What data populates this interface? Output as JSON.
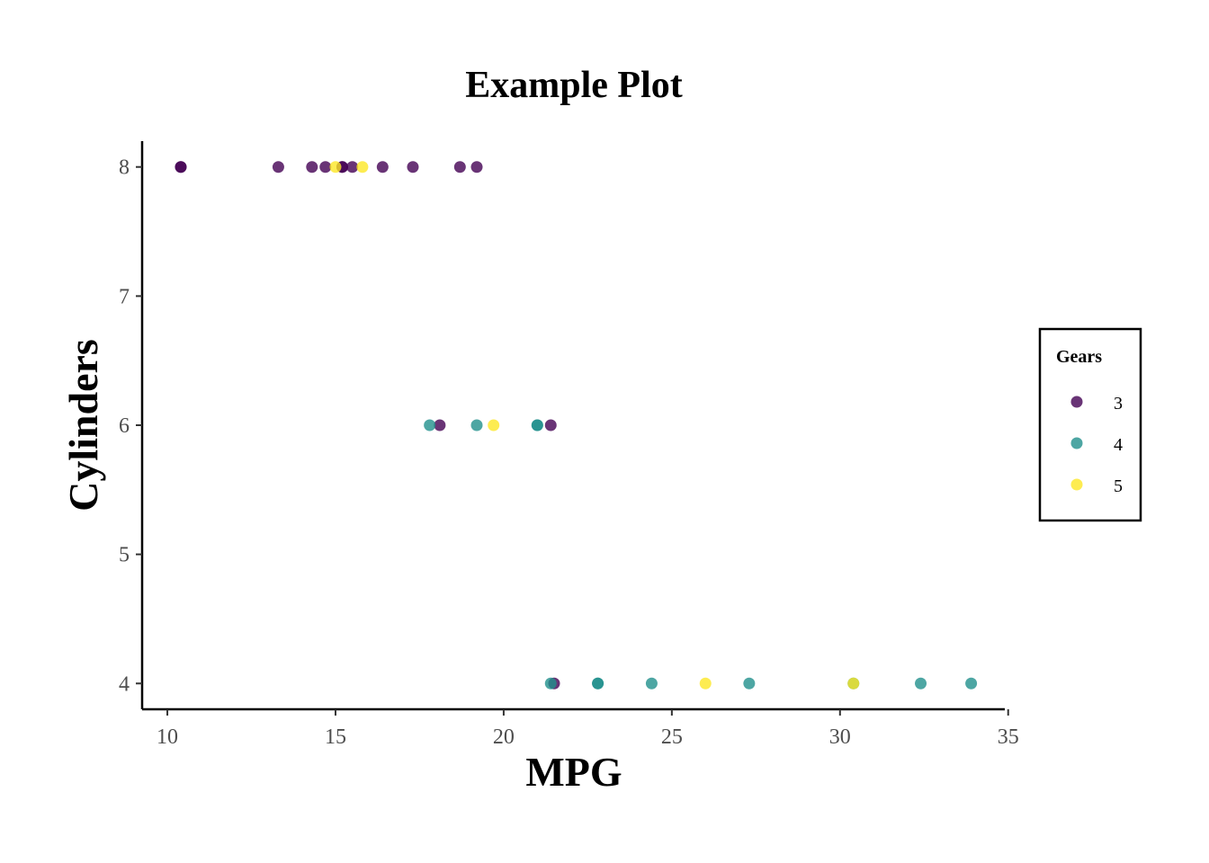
{
  "chart_data": {
    "type": "scatter",
    "title": "Example Plot",
    "xlabel": "MPG",
    "ylabel": "Cylinders",
    "xlim": [
      9.25,
      34.9
    ],
    "ylim": [
      3.8,
      8.2
    ],
    "x_ticks": [
      10,
      15,
      20,
      25,
      30,
      35
    ],
    "y_ticks": [
      4,
      5,
      6,
      7,
      8
    ],
    "grid": false,
    "legend": {
      "title": "Gears",
      "placement": "right"
    },
    "series": [
      {
        "name": "3",
        "color": "#440154",
        "points": [
          {
            "x": 10.4,
            "y": 8
          },
          {
            "x": 10.4,
            "y": 8
          },
          {
            "x": 13.3,
            "y": 8
          },
          {
            "x": 14.3,
            "y": 8
          },
          {
            "x": 14.7,
            "y": 8
          },
          {
            "x": 15.2,
            "y": 8
          },
          {
            "x": 15.2,
            "y": 8
          },
          {
            "x": 15.5,
            "y": 8
          },
          {
            "x": 16.4,
            "y": 8
          },
          {
            "x": 17.3,
            "y": 8
          },
          {
            "x": 18.7,
            "y": 8
          },
          {
            "x": 19.2,
            "y": 8
          },
          {
            "x": 18.1,
            "y": 6
          },
          {
            "x": 21.4,
            "y": 6
          },
          {
            "x": 21.5,
            "y": 4
          }
        ]
      },
      {
        "name": "4",
        "color": "#21908c",
        "points": [
          {
            "x": 17.8,
            "y": 6
          },
          {
            "x": 19.2,
            "y": 6
          },
          {
            "x": 21.0,
            "y": 6
          },
          {
            "x": 21.0,
            "y": 6
          },
          {
            "x": 21.4,
            "y": 4
          },
          {
            "x": 22.8,
            "y": 4
          },
          {
            "x": 22.8,
            "y": 4
          },
          {
            "x": 24.4,
            "y": 4
          },
          {
            "x": 27.3,
            "y": 4
          },
          {
            "x": 30.4,
            "y": 4
          },
          {
            "x": 32.4,
            "y": 4
          },
          {
            "x": 33.9,
            "y": 4
          }
        ]
      },
      {
        "name": "5",
        "color": "#fde725",
        "points": [
          {
            "x": 15.0,
            "y": 8
          },
          {
            "x": 15.8,
            "y": 8
          },
          {
            "x": 19.7,
            "y": 6
          },
          {
            "x": 26.0,
            "y": 4
          },
          {
            "x": 30.4,
            "y": 4
          }
        ]
      }
    ]
  }
}
